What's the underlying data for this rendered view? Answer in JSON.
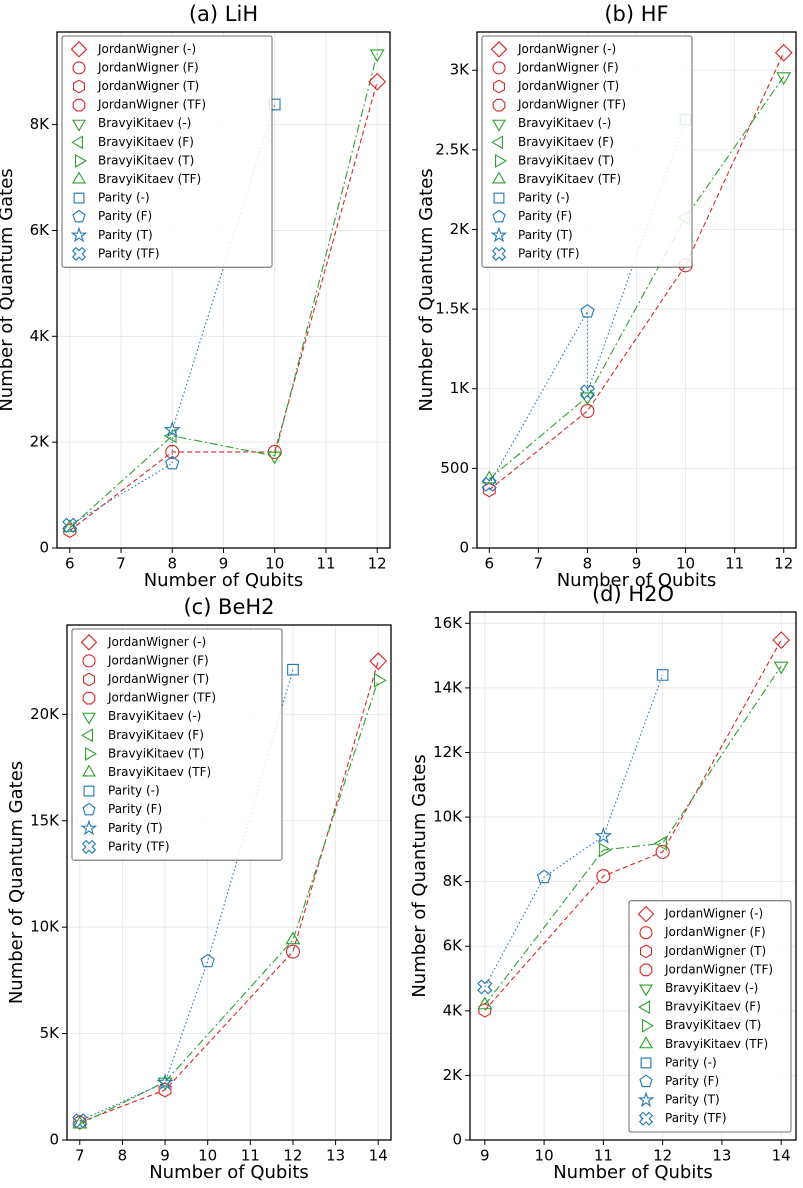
{
  "chart_data": [
    {
      "type": "line",
      "title": "(a) LiH",
      "xlabel": "Number of Qubits",
      "ylabel": "Number of Quantum Gates",
      "xlim": [
        5.75,
        12.25
      ],
      "xticks": [
        6,
        7,
        8,
        9,
        10,
        11,
        12
      ],
      "ylim": [
        0,
        9750
      ],
      "yticks": [
        0,
        {
          "value": 2000,
          "label": "2K"
        },
        {
          "value": 4000,
          "label": "4K"
        },
        {
          "value": 6000,
          "label": "6K"
        },
        {
          "value": 8000,
          "label": "8K"
        }
      ],
      "grid": true,
      "series": [
        {
          "color": "#d62728",
          "linestyle": "dashed",
          "x": [
            6,
            8,
            10,
            12
          ],
          "values": [
            330,
            1815,
            1815,
            8810
          ],
          "markers": [
            "hexagon",
            "circle",
            "circle",
            "diamond"
          ]
        },
        {
          "color": "#2ca02c",
          "linestyle": "dashdot",
          "x": [
            6,
            8,
            10,
            12
          ],
          "values": [
            380,
            2120,
            1740,
            9340
          ],
          "markers": [
            "triangle-up",
            "triangle-left",
            "triangle-down",
            "triangle-down"
          ]
        },
        {
          "color": "#1f77b4",
          "linestyle": "dotted",
          "x": [
            6,
            8,
            8,
            10
          ],
          "values": [
            430,
            1600,
            2230,
            8380
          ],
          "markers": [
            "x-cross",
            "pentagon",
            "star",
            "square"
          ]
        }
      ],
      "legend": {
        "loc": "upper left",
        "entries": [
          {
            "name": "JordanWigner (-)",
            "marker": "diamond",
            "color": "#d62728"
          },
          {
            "name": "JordanWigner (F)",
            "marker": "circle",
            "color": "#d62728"
          },
          {
            "name": "JordanWigner (T)",
            "marker": "hexagon",
            "color": "#d62728"
          },
          {
            "name": "JordanWigner (TF)",
            "marker": "octagon",
            "color": "#d62728"
          },
          {
            "name": "BravyiKitaev (-)",
            "marker": "triangle-down",
            "color": "#2ca02c"
          },
          {
            "name": "BravyiKitaev (F)",
            "marker": "triangle-left",
            "color": "#2ca02c"
          },
          {
            "name": "BravyiKitaev (T)",
            "marker": "triangle-right",
            "color": "#2ca02c"
          },
          {
            "name": "BravyiKitaev (TF)",
            "marker": "triangle-up",
            "color": "#2ca02c"
          },
          {
            "name": "Parity (-)",
            "marker": "square",
            "color": "#1f77b4"
          },
          {
            "name": "Parity (F)",
            "marker": "pentagon",
            "color": "#1f77b4"
          },
          {
            "name": "Parity (T)",
            "marker": "star",
            "color": "#1f77b4"
          },
          {
            "name": "Parity (TF)",
            "marker": "x-cross",
            "color": "#1f77b4"
          }
        ]
      }
    },
    {
      "type": "line",
      "title": "(b) HF",
      "xlabel": "Number of Qubits",
      "ylabel": "Number of Quantum Gates",
      "xlim": [
        5.75,
        12.25
      ],
      "xticks": [
        6,
        7,
        8,
        9,
        10,
        11,
        12
      ],
      "ylim": [
        0,
        3240
      ],
      "yticks": [
        0,
        500,
        {
          "value": 1000,
          "label": "1K"
        },
        {
          "value": 1500,
          "label": "1.5K"
        },
        {
          "value": 2000,
          "label": "2K"
        },
        {
          "value": 2500,
          "label": "2.5K"
        },
        {
          "value": 3000,
          "label": "3K"
        }
      ],
      "grid": true,
      "series": [
        {
          "color": "#d62728",
          "linestyle": "dashed",
          "x": [
            6,
            8,
            10,
            12
          ],
          "values": [
            365,
            860,
            1775,
            3110
          ],
          "markers": [
            "hexagon",
            "circle",
            "circle",
            "diamond"
          ]
        },
        {
          "color": "#2ca02c",
          "linestyle": "dashdot",
          "x": [
            6,
            8,
            10,
            12
          ],
          "values": [
            433,
            950,
            2075,
            2960
          ],
          "markers": [
            "triangle-up",
            "triangle-down",
            "triangle-left",
            "triangle-down"
          ]
        },
        {
          "color": "#1f77b4",
          "linestyle": "dotted",
          "x": [
            6,
            8,
            8,
            10
          ],
          "values": [
            400,
            1485,
            980,
            2690
          ],
          "markers": [
            "x-cross",
            "pentagon",
            "x-cross",
            "square"
          ]
        }
      ],
      "legend": {
        "loc": "upper left",
        "entries": [
          {
            "name": "JordanWigner (-)",
            "marker": "diamond",
            "color": "#d62728"
          },
          {
            "name": "JordanWigner (F)",
            "marker": "circle",
            "color": "#d62728"
          },
          {
            "name": "JordanWigner (T)",
            "marker": "hexagon",
            "color": "#d62728"
          },
          {
            "name": "JordanWigner (TF)",
            "marker": "octagon",
            "color": "#d62728"
          },
          {
            "name": "BravyiKitaev (-)",
            "marker": "triangle-down",
            "color": "#2ca02c"
          },
          {
            "name": "BravyiKitaev (F)",
            "marker": "triangle-left",
            "color": "#2ca02c"
          },
          {
            "name": "BravyiKitaev (T)",
            "marker": "triangle-right",
            "color": "#2ca02c"
          },
          {
            "name": "BravyiKitaev (TF)",
            "marker": "triangle-up",
            "color": "#2ca02c"
          },
          {
            "name": "Parity (-)",
            "marker": "square",
            "color": "#1f77b4"
          },
          {
            "name": "Parity (F)",
            "marker": "pentagon",
            "color": "#1f77b4"
          },
          {
            "name": "Parity (T)",
            "marker": "star",
            "color": "#1f77b4"
          },
          {
            "name": "Parity (TF)",
            "marker": "x-cross",
            "color": "#1f77b4"
          }
        ]
      }
    },
    {
      "type": "line",
      "title": "(c) BeH2",
      "xlabel": "Number of Qubits",
      "ylabel": "Number of Quantum Gates",
      "xlim": [
        6.7,
        14.3
      ],
      "xticks": [
        7,
        8,
        9,
        10,
        11,
        12,
        13,
        14
      ],
      "ylim": [
        0,
        24200
      ],
      "yticks": [
        0,
        {
          "value": 5000,
          "label": "5K"
        },
        {
          "value": 10000,
          "label": "10K"
        },
        {
          "value": 15000,
          "label": "15K"
        },
        {
          "value": 20000,
          "label": "20K"
        }
      ],
      "grid": true,
      "series": [
        {
          "color": "#d62728",
          "linestyle": "dashed",
          "x": [
            7,
            9,
            12,
            14
          ],
          "values": [
            830,
            2350,
            8850,
            22500
          ],
          "markers": [
            "hexagon",
            "hexagon",
            "circle",
            "diamond"
          ]
        },
        {
          "color": "#2ca02c",
          "linestyle": "dashdot",
          "x": [
            7,
            9,
            12,
            14
          ],
          "values": [
            740,
            2730,
            9400,
            21600
          ],
          "markers": [
            "triangle-up",
            "triangle-down",
            "triangle-up",
            "triangle-right"
          ]
        },
        {
          "color": "#1f77b4",
          "linestyle": "dotted",
          "x": [
            7,
            9,
            10,
            12
          ],
          "values": [
            900,
            2700,
            8400,
            22100
          ],
          "markers": [
            "x-cross",
            "star",
            "pentagon",
            "square"
          ]
        }
      ],
      "legend": {
        "loc": "upper left",
        "entries": [
          {
            "name": "JordanWigner (-)",
            "marker": "diamond",
            "color": "#d62728"
          },
          {
            "name": "JordanWigner (F)",
            "marker": "circle",
            "color": "#d62728"
          },
          {
            "name": "JordanWigner (T)",
            "marker": "hexagon",
            "color": "#d62728"
          },
          {
            "name": "JordanWigner (TF)",
            "marker": "octagon",
            "color": "#d62728"
          },
          {
            "name": "BravyiKitaev (-)",
            "marker": "triangle-down",
            "color": "#2ca02c"
          },
          {
            "name": "BravyiKitaev (F)",
            "marker": "triangle-left",
            "color": "#2ca02c"
          },
          {
            "name": "BravyiKitaev (T)",
            "marker": "triangle-right",
            "color": "#2ca02c"
          },
          {
            "name": "BravyiKitaev (TF)",
            "marker": "triangle-up",
            "color": "#2ca02c"
          },
          {
            "name": "Parity (-)",
            "marker": "square",
            "color": "#1f77b4"
          },
          {
            "name": "Parity (F)",
            "marker": "pentagon",
            "color": "#1f77b4"
          },
          {
            "name": "Parity (T)",
            "marker": "star",
            "color": "#1f77b4"
          },
          {
            "name": "Parity (TF)",
            "marker": "x-cross",
            "color": "#1f77b4"
          }
        ]
      }
    },
    {
      "type": "line",
      "title": "(d) H2O",
      "xlabel": "Number of Qubits",
      "ylabel": "Number of Quantum Gates",
      "xlim": [
        8.75,
        14.25
      ],
      "xticks": [
        9,
        10,
        11,
        12,
        13,
        14
      ],
      "ylim": [
        0,
        16350
      ],
      "yticks": [
        0,
        {
          "value": 2000,
          "label": "2K"
        },
        {
          "value": 4000,
          "label": "4K"
        },
        {
          "value": 6000,
          "label": "6K"
        },
        {
          "value": 8000,
          "label": "8K"
        },
        {
          "value": 10000,
          "label": "10K"
        },
        {
          "value": 12000,
          "label": "12K"
        },
        {
          "value": 14000,
          "label": "14K"
        },
        {
          "value": 16000,
          "label": "16K"
        }
      ],
      "grid": true,
      "series": [
        {
          "color": "#d62728",
          "linestyle": "dashed",
          "x": [
            9,
            11,
            12,
            14
          ],
          "values": [
            4020,
            8170,
            8920,
            15480
          ],
          "markers": [
            "hexagon",
            "circle",
            "circle",
            "diamond"
          ]
        },
        {
          "color": "#2ca02c",
          "linestyle": "dashdot",
          "x": [
            9,
            11,
            12,
            14
          ],
          "values": [
            4180,
            8980,
            9190,
            14680
          ],
          "markers": [
            "triangle-up",
            "triangle-right",
            "triangle-left",
            "triangle-down"
          ]
        },
        {
          "color": "#1f77b4",
          "linestyle": "dotted",
          "x": [
            9,
            10,
            11,
            12
          ],
          "values": [
            4740,
            8140,
            9410,
            14400
          ],
          "markers": [
            "x-cross",
            "pentagon",
            "star",
            "square"
          ]
        }
      ],
      "legend": {
        "loc": "lower right",
        "entries": [
          {
            "name": "JordanWigner (-)",
            "marker": "diamond",
            "color": "#d62728"
          },
          {
            "name": "JordanWigner (F)",
            "marker": "circle",
            "color": "#d62728"
          },
          {
            "name": "JordanWigner (T)",
            "marker": "hexagon",
            "color": "#d62728"
          },
          {
            "name": "JordanWigner (TF)",
            "marker": "octagon",
            "color": "#d62728"
          },
          {
            "name": "BravyiKitaev (-)",
            "marker": "triangle-down",
            "color": "#2ca02c"
          },
          {
            "name": "BravyiKitaev (F)",
            "marker": "triangle-left",
            "color": "#2ca02c"
          },
          {
            "name": "BravyiKitaev (T)",
            "marker": "triangle-right",
            "color": "#2ca02c"
          },
          {
            "name": "BravyiKitaev (TF)",
            "marker": "triangle-up",
            "color": "#2ca02c"
          },
          {
            "name": "Parity (-)",
            "marker": "square",
            "color": "#1f77b4"
          },
          {
            "name": "Parity (F)",
            "marker": "pentagon",
            "color": "#1f77b4"
          },
          {
            "name": "Parity (T)",
            "marker": "star",
            "color": "#1f77b4"
          },
          {
            "name": "Parity (TF)",
            "marker": "x-cross",
            "color": "#1f77b4"
          }
        ]
      }
    }
  ]
}
